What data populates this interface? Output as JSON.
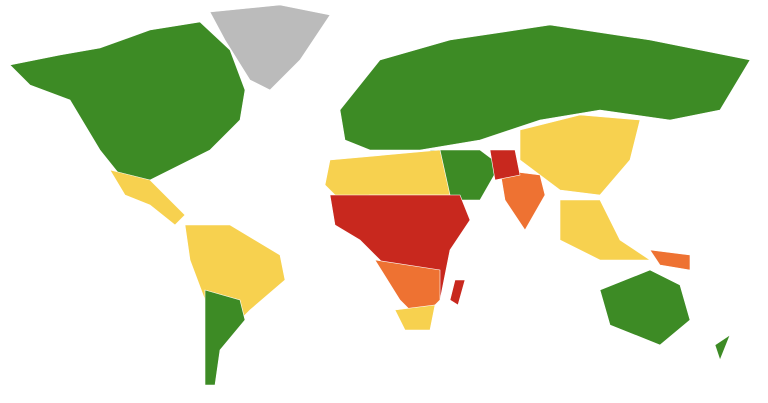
{
  "map": {
    "palette": [
      "#3d8b25",
      "#f7d14f",
      "#ee7232",
      "#c8281e",
      "#bbbbbb"
    ]
  }
}
